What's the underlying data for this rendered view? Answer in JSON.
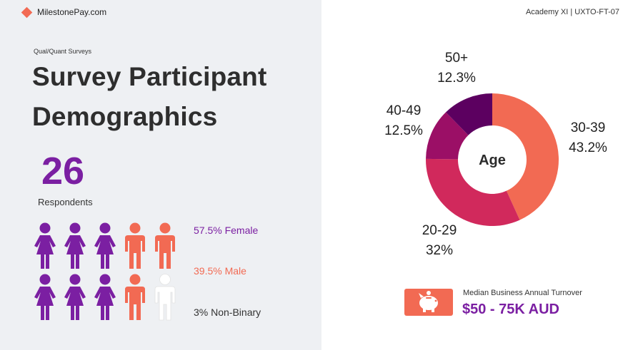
{
  "brand": {
    "name": "MilestonePay.com"
  },
  "header": {
    "course": "Academy XI | UXTO-FT-07"
  },
  "eyebrow": "Qual/Quant Surveys",
  "title_line1": "Survey Participant",
  "title_line2": "Demographics",
  "respondents": {
    "count": "26",
    "label": "Respondents"
  },
  "gender": {
    "female_label": "57.5% Female",
    "male_label": "39.5% Male",
    "nonbinary_label": "3% Non-Binary",
    "icons": [
      {
        "row": 0,
        "col": 0,
        "group": "female"
      },
      {
        "row": 0,
        "col": 1,
        "group": "female"
      },
      {
        "row": 0,
        "col": 2,
        "group": "female"
      },
      {
        "row": 0,
        "col": 3,
        "group": "male"
      },
      {
        "row": 0,
        "col": 4,
        "group": "male"
      },
      {
        "row": 1,
        "col": 0,
        "group": "female"
      },
      {
        "row": 1,
        "col": 1,
        "group": "female"
      },
      {
        "row": 1,
        "col": 2,
        "group": "female"
      },
      {
        "row": 1,
        "col": 3,
        "group": "male"
      },
      {
        "row": 1,
        "col": 4,
        "group": "nonbinary"
      }
    ]
  },
  "chart_data": {
    "type": "pie",
    "variant": "donut",
    "center_label": "Age",
    "slices": [
      {
        "label": "30-39",
        "value": 43.2,
        "value_label": "43.2%",
        "color": "#f26a53"
      },
      {
        "label": "20-29",
        "value": 32,
        "value_label": "32%",
        "color": "#d1295c"
      },
      {
        "label": "40-49",
        "value": 12.5,
        "value_label": "12.5%",
        "color": "#9b0f66"
      },
      {
        "label": "50+",
        "value": 12.3,
        "value_label": "12.3%",
        "color": "#5c0060"
      }
    ]
  },
  "turnover": {
    "label": "Median Business Annual Turnover",
    "value": "$50 - 75K AUD",
    "icon": "piggy-bank-icon"
  },
  "colors": {
    "accent_purple": "#7b1fa2",
    "accent_coral": "#f26a53",
    "panel_bg": "#eef0f3",
    "female": "#7b1fa2",
    "male": "#f26a53",
    "nonbinary": "#ffffff"
  }
}
